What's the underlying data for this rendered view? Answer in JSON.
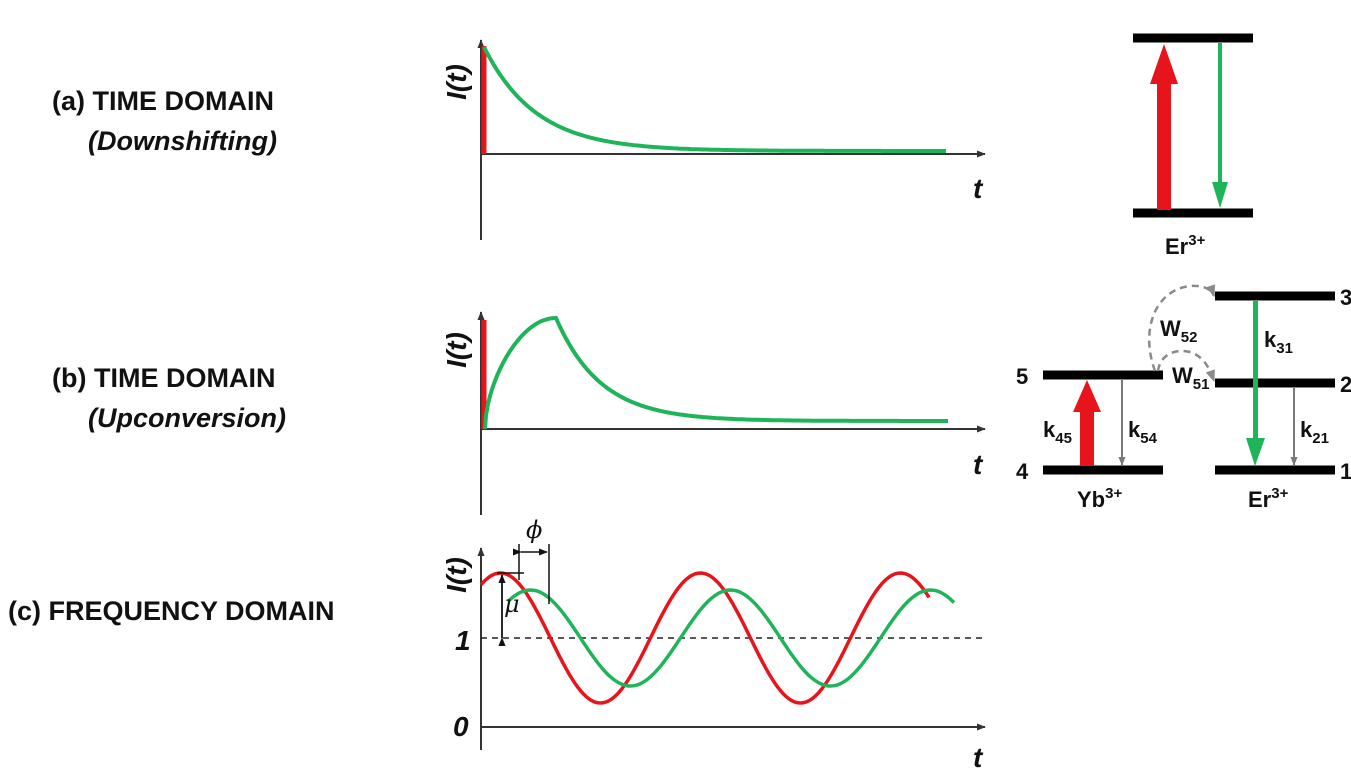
{
  "colors": {
    "red": "#e8141b",
    "green": "#1fb45a",
    "gray": "#7a7a7a",
    "dashed": "#8a8a8a"
  },
  "panels": {
    "a": {
      "line1": "(a) TIME DOMAIN",
      "line2": "(Downshifting)"
    },
    "b": {
      "line1": "(b) TIME DOMAIN",
      "line2": "(Upconversion)"
    },
    "c": {
      "line1": "(c) FREQUENCY DOMAIN"
    }
  },
  "axes": {
    "y_label": "I(t)",
    "x_label": "t",
    "tick_one": "1",
    "tick_zero": "0"
  },
  "annotations": {
    "phase": "ϕ",
    "modulation": "μ"
  },
  "diagram_a": {
    "ion": "Er",
    "ion_charge": "3+"
  },
  "diagram_b": {
    "yb_ion": "Yb",
    "yb_charge": "3+",
    "er_ion": "Er",
    "er_charge": "3+",
    "levels": {
      "l1": "1",
      "l2": "2",
      "l3": "3",
      "l4": "4",
      "l5": "5"
    },
    "rates": {
      "w52": {
        "main": "W",
        "sub": "52"
      },
      "w51": {
        "main": "W",
        "sub": "51"
      },
      "k31": {
        "main": "k",
        "sub": "31"
      },
      "k45": {
        "main": "k",
        "sub": "45"
      },
      "k54": {
        "main": "k",
        "sub": "54"
      },
      "k21": {
        "main": "k",
        "sub": "21"
      }
    }
  }
}
